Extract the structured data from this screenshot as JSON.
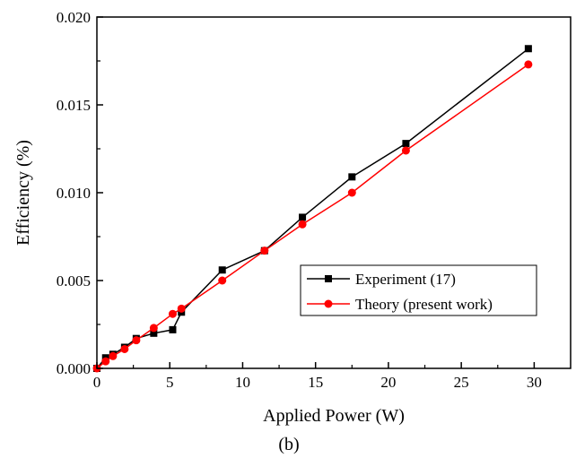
{
  "chart_data": {
    "type": "line",
    "title": "",
    "caption": "(b)",
    "xlabel": "Applied Power (W)",
    "ylabel": "Efficiency (%)",
    "xlim": [
      0,
      32.5
    ],
    "ylim": [
      0,
      0.02
    ],
    "xticks": [
      0,
      5,
      10,
      15,
      20,
      25,
      30
    ],
    "xtick_labels": [
      "0",
      "5",
      "10",
      "15",
      "20",
      "25",
      "30"
    ],
    "yticks": [
      0,
      0.005,
      0.01,
      0.015,
      0.02
    ],
    "ytick_labels": [
      "0.000",
      "0.005",
      "0.010",
      "0.015",
      "0.020"
    ],
    "grid": false,
    "legend_position": "lower-right",
    "series": [
      {
        "name": "Experiment (17)",
        "color": "#000000",
        "marker": "square",
        "x": [
          0,
          0.6,
          1.1,
          1.9,
          2.7,
          3.9,
          5.2,
          5.8,
          8.6,
          11.5,
          14.1,
          17.5,
          21.2,
          29.6
        ],
        "y": [
          0,
          0.0006,
          0.0008,
          0.0012,
          0.0017,
          0.002,
          0.0022,
          0.0032,
          0.0056,
          0.0067,
          0.0086,
          0.0109,
          0.0128,
          0.0182
        ]
      },
      {
        "name": "Theory (present work)",
        "color": "#ff0000",
        "marker": "circle",
        "x": [
          0,
          0.6,
          1.1,
          1.9,
          2.7,
          3.9,
          5.2,
          5.8,
          8.6,
          11.5,
          14.1,
          17.5,
          21.2,
          29.6
        ],
        "y": [
          0,
          0.0004,
          0.0007,
          0.0011,
          0.0016,
          0.0023,
          0.0031,
          0.0034,
          0.005,
          0.0067,
          0.0082,
          0.01,
          0.0124,
          0.0173
        ]
      }
    ]
  }
}
